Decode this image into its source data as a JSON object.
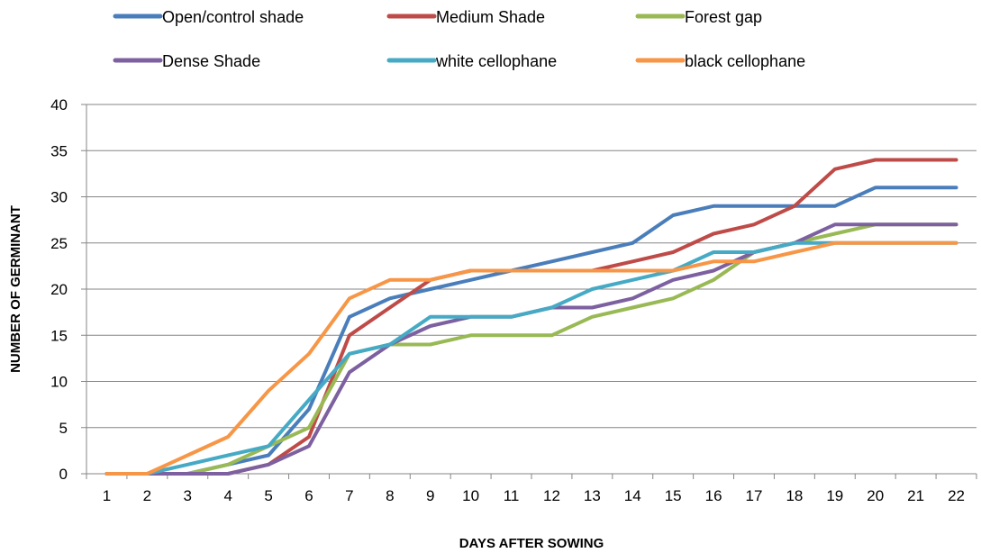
{
  "chart_data": {
    "type": "line",
    "title": "",
    "xlabel": "DAYS AFTER SOWING",
    "ylabel": "NUMBER OF GERMINANT",
    "x": [
      1,
      2,
      3,
      4,
      5,
      6,
      7,
      8,
      9,
      10,
      11,
      12,
      13,
      14,
      15,
      16,
      17,
      18,
      19,
      20,
      21,
      22
    ],
    "ylim": [
      0,
      40
    ],
    "yticks": [
      0,
      5,
      10,
      15,
      20,
      25,
      30,
      35,
      40
    ],
    "grid": true,
    "legend_position": "top",
    "series": [
      {
        "name": "Open/control shade",
        "color": "#4a7ebb",
        "values": [
          0,
          0,
          0,
          1,
          2,
          7,
          17,
          19,
          20,
          21,
          22,
          23,
          24,
          25,
          28,
          29,
          29,
          29,
          29,
          31,
          31,
          31
        ]
      },
      {
        "name": "Medium Shade",
        "color": "#be4b48",
        "values": [
          0,
          0,
          0,
          0,
          1,
          4,
          15,
          18,
          21,
          22,
          22,
          22,
          22,
          23,
          24,
          26,
          27,
          29,
          33,
          34,
          34,
          34
        ]
      },
      {
        "name": "Forest gap",
        "color": "#98b954",
        "values": [
          0,
          0,
          0,
          1,
          3,
          5,
          13,
          14,
          14,
          15,
          15,
          15,
          17,
          18,
          19,
          21,
          24,
          25,
          26,
          27,
          27,
          27
        ]
      },
      {
        "name": "Dense Shade",
        "color": "#7d60a0",
        "values": [
          0,
          0,
          0,
          0,
          1,
          3,
          11,
          14,
          16,
          17,
          17,
          18,
          18,
          19,
          21,
          22,
          24,
          25,
          27,
          27,
          27,
          27
        ]
      },
      {
        "name": "white cellophane",
        "color": "#46aac5",
        "values": [
          0,
          0,
          1,
          2,
          3,
          8,
          13,
          14,
          17,
          17,
          17,
          18,
          20,
          21,
          22,
          24,
          24,
          25,
          25,
          25,
          25,
          25
        ]
      },
      {
        "name": "black cellophane",
        "color": "#f79646",
        "values": [
          0,
          0,
          2,
          4,
          9,
          13,
          19,
          21,
          21,
          22,
          22,
          22,
          22,
          22,
          22,
          23,
          23,
          24,
          25,
          25,
          25,
          25
        ]
      }
    ]
  }
}
